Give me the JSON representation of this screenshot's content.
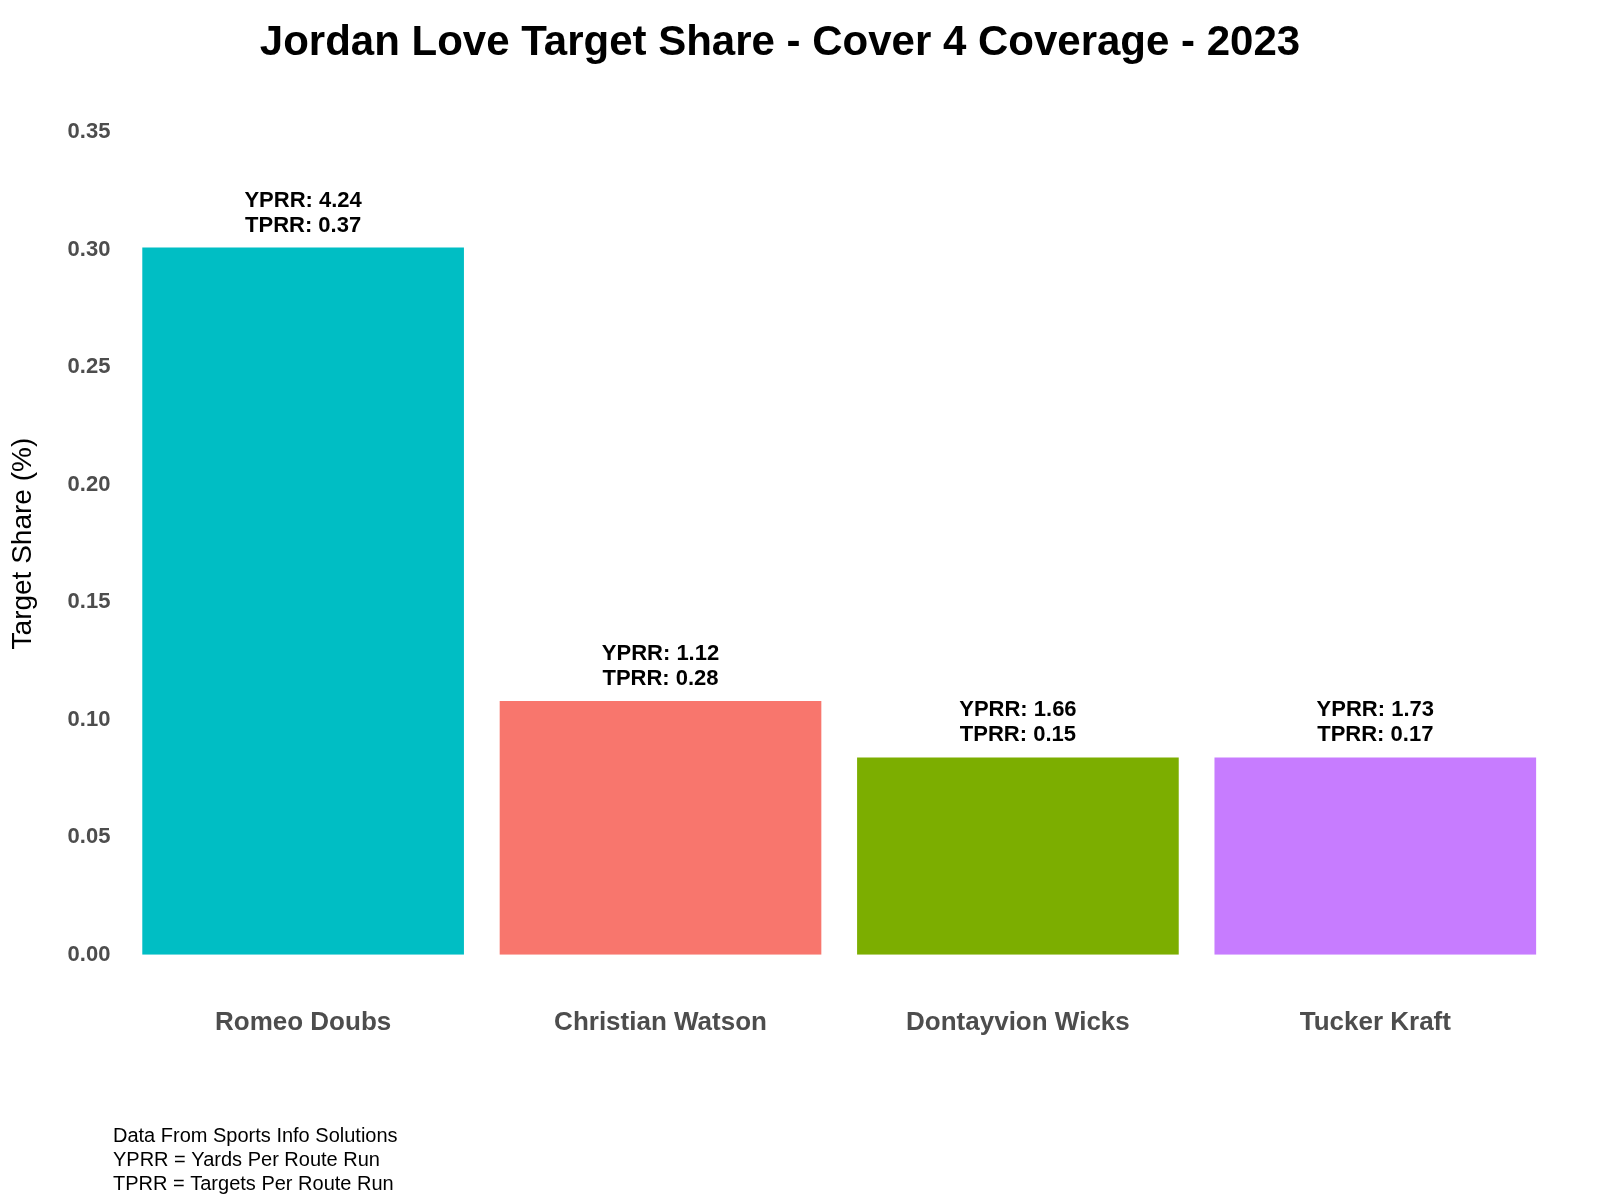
{
  "chart_data": {
    "type": "bar",
    "title": "Jordan Love Target Share - Cover 4 Coverage - 2023",
    "y_label": "Target Share (%)",
    "categories": [
      "Romeo Doubs",
      "Christian Watson",
      "Dontayvion Wicks",
      "Tucker Kraft"
    ],
    "values": [
      0.301,
      0.108,
      0.084,
      0.084
    ],
    "colors": [
      "#00bec4",
      "#f8766d",
      "#7cae00",
      "#c77cff"
    ],
    "ylim": [
      0,
      0.35
    ],
    "yticks": [
      {
        "value": 0,
        "label": "0.00"
      },
      0.05,
      {
        "value": 0.1,
        "label": "0.10"
      },
      0.15,
      {
        "value": 0.2,
        "label": "0.20"
      },
      0.25,
      {
        "value": 0.3,
        "label": "0.30"
      },
      0.35
    ],
    "grid": false,
    "annotations": [
      {
        "category": "Romeo Doubs",
        "lines": [
          "YPRR: 4.24",
          "TPRR: 0.37"
        ]
      },
      {
        "category": "Christian Watson",
        "lines": [
          "YPRR: 1.12",
          "TPRR: 0.28"
        ]
      },
      {
        "category": "Dontayvion Wicks",
        "lines": [
          "YPRR: 1.66",
          "TPRR: 0.15"
        ]
      },
      {
        "category": "Tucker Kraft",
        "lines": [
          "YPRR: 1.73",
          "TPRR: 0.17"
        ]
      }
    ],
    "notes": [
      "Data From Sports Info Solutions",
      "YPRR = Yards Per Route Run",
      "TPRR = Targets Per Route Run"
    ]
  }
}
